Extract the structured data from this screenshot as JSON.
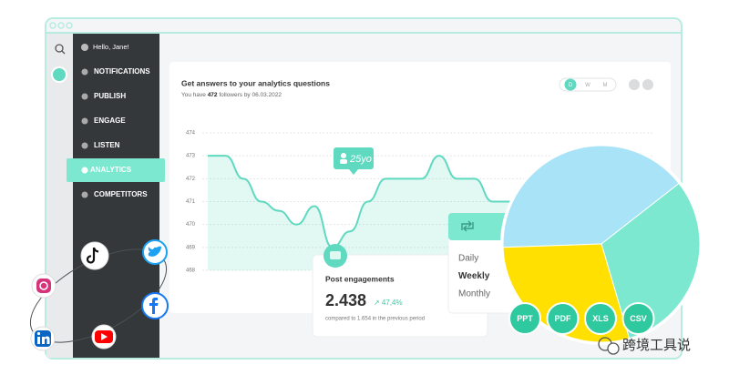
{
  "sidebar": {
    "greeting": "Hello, Jane!",
    "items": [
      "NOTIFICATIONS",
      "PUBLISH",
      "ENGAGE",
      "LISTEN",
      "ANALYTICS",
      "COMPETITORS"
    ]
  },
  "header": {
    "title": "Get answers to your analytics questions",
    "followers_prefix": "You have",
    "followers_count": "472",
    "followers_suffix": "followers by 06.03.2022",
    "periods": [
      "D",
      "W",
      "M"
    ]
  },
  "chart_data": [
    {
      "type": "line",
      "color": "#5fd9bf",
      "values": [
        473,
        473,
        472,
        471,
        470.6,
        470,
        470.8,
        469,
        469.7,
        471,
        472,
        472,
        472,
        473,
        472,
        472,
        471,
        471
      ],
      "ylim": [
        468,
        474
      ],
      "yticks": [
        468,
        469,
        470,
        471,
        472,
        473,
        474
      ],
      "grid": true
    },
    {
      "type": "pie",
      "values": [
        40,
        31,
        29
      ],
      "colors": [
        "#a9e3f7",
        "#7ce8cf",
        "#ffe000"
      ]
    }
  ],
  "tag": "25yo",
  "engagements": {
    "title": "Post engagements",
    "value": "2.438",
    "change": "↗ 47,4%",
    "note": "compared to 1.654 in the previous period"
  },
  "dropdown": [
    "Daily",
    "Weekly",
    "Monthly"
  ],
  "exports": [
    "PPT",
    "PDF",
    "XLS",
    "CSV"
  ],
  "watermark": "跨境工具说"
}
